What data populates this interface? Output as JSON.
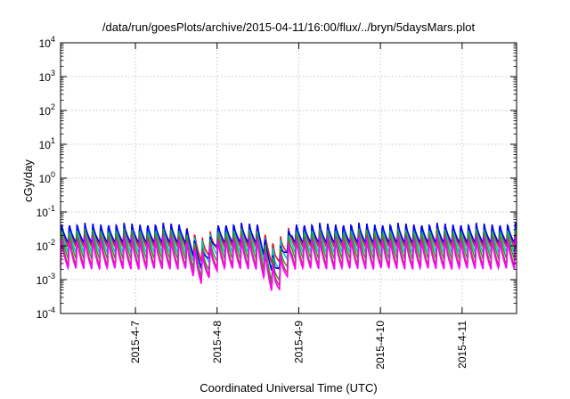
{
  "chart_data": {
    "type": "line",
    "title": "/data/run/goesPlots/archive/2015-04-11/16:00/flux/../bryn/5daysMars.plot",
    "xlabel": "Coordinated Universal Time (UTC)",
    "ylabel": "cGy/day",
    "yscale": "log",
    "ylim": [
      0.0001,
      10000
    ],
    "xlim": [
      "2015-04-06T02:00",
      "2015-04-11T16:00"
    ],
    "x_ticks": [
      "2015-4-7",
      "2015-4-8",
      "2015-4-9",
      "2015-4-10",
      "2015-4-11"
    ],
    "y_ticks": [
      {
        "value": 0.0001,
        "base": "10",
        "exp": "-4"
      },
      {
        "value": 0.001,
        "base": "10",
        "exp": "-3"
      },
      {
        "value": 0.01,
        "base": "10",
        "exp": "-2"
      },
      {
        "value": 0.1,
        "base": "10",
        "exp": "-1"
      },
      {
        "value": 1,
        "base": "10",
        "exp": "0"
      },
      {
        "value": 10,
        "base": "10",
        "exp": "1"
      },
      {
        "value": 100,
        "base": "10",
        "exp": "2"
      },
      {
        "value": 1000,
        "base": "10",
        "exp": "3"
      },
      {
        "value": 10000,
        "base": "10",
        "exp": "4"
      }
    ],
    "grid": true,
    "legend": "none",
    "sawtooth_period_hours": 2.3,
    "series": [
      {
        "color": "#e31a1c",
        "peak": 0.05,
        "trough": 0.009
      },
      {
        "color": "#00c8c8",
        "peak": 0.045,
        "trough": 0.006
      },
      {
        "color": "#0000ff",
        "peak": 0.05,
        "trough": 0.012
      },
      {
        "color": "#2ca02c",
        "peak": 0.035,
        "trough": 0.004
      },
      {
        "color": "#a0522d",
        "peak": 0.025,
        "trough": 0.0025
      },
      {
        "color": "#ff00ff",
        "peak": 0.02,
        "trough": 0.002
      }
    ],
    "dips": [
      {
        "time": "2015-04-07T19:30",
        "min": 0.0007
      },
      {
        "time": "2015-04-08T17:00",
        "min": 0.0003
      }
    ]
  }
}
